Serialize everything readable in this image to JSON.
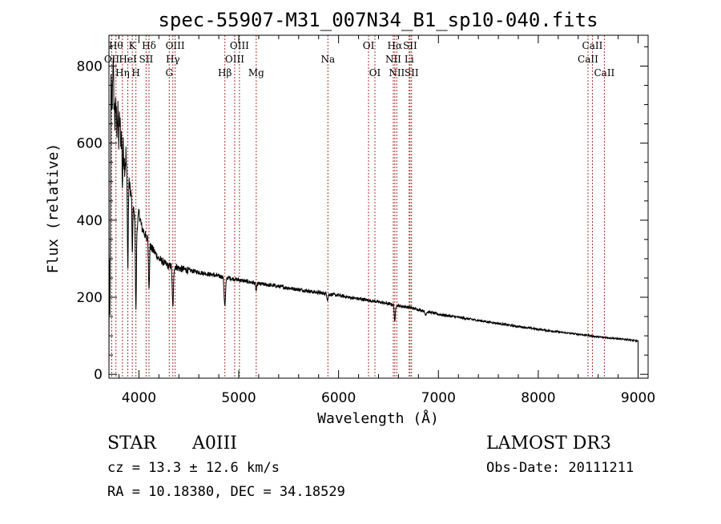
{
  "chart_data": {
    "type": "line",
    "title": "spec-55907-M31_007N34_B1_sp10-040.fits",
    "xlabel": "Wavelength (Å)",
    "ylabel": "Flux (relative)",
    "xlim": [
      3700,
      9100
    ],
    "ylim": [
      -10,
      880
    ],
    "xticks": [
      4000,
      5000,
      6000,
      7000,
      8000,
      9000
    ],
    "yticks": [
      0,
      200,
      400,
      600,
      800
    ],
    "grid": false,
    "line_color": "#000000",
    "marker_color": "#b03030",
    "spectrum_anchors": [
      [
        3700,
        0
      ],
      [
        3703,
        350
      ],
      [
        3710,
        150
      ],
      [
        3720,
        760
      ],
      [
        3730,
        680
      ],
      [
        3740,
        820
      ],
      [
        3750,
        720
      ],
      [
        3760,
        650
      ],
      [
        3770,
        700
      ],
      [
        3780,
        640
      ],
      [
        3790,
        690
      ],
      [
        3800,
        720
      ],
      [
        3810,
        650
      ],
      [
        3820,
        610
      ],
      [
        3835,
        640
      ],
      [
        3850,
        560
      ],
      [
        3860,
        540
      ],
      [
        3870,
        570
      ],
      [
        3880,
        510
      ],
      [
        3890,
        480
      ],
      [
        3900,
        500
      ],
      [
        3920,
        470
      ],
      [
        3935,
        450
      ],
      [
        3950,
        420
      ],
      [
        3970,
        400
      ],
      [
        3985,
        390
      ],
      [
        4000,
        420
      ],
      [
        4030,
        380
      ],
      [
        4050,
        370
      ],
      [
        4080,
        350
      ],
      [
        4101,
        380
      ],
      [
        4120,
        330
      ],
      [
        4150,
        320
      ],
      [
        4200,
        300
      ],
      [
        4250,
        290
      ],
      [
        4300,
        280
      ],
      [
        4340,
        285
      ],
      [
        4400,
        275
      ],
      [
        4500,
        270
      ],
      [
        4600,
        265
      ],
      [
        4700,
        260
      ],
      [
        4800,
        255
      ],
      [
        4900,
        250
      ],
      [
        5000,
        245
      ],
      [
        5100,
        240
      ],
      [
        5200,
        235
      ],
      [
        5300,
        232
      ],
      [
        5400,
        228
      ],
      [
        5500,
        224
      ],
      [
        5600,
        220
      ],
      [
        5700,
        216
      ],
      [
        5800,
        212
      ],
      [
        5900,
        208
      ],
      [
        6000,
        205
      ],
      [
        6100,
        200
      ],
      [
        6200,
        196
      ],
      [
        6300,
        192
      ],
      [
        6400,
        188
      ],
      [
        6500,
        183
      ],
      [
        6600,
        178
      ],
      [
        6700,
        174
      ],
      [
        6800,
        168
      ],
      [
        6900,
        162
      ],
      [
        7000,
        156
      ],
      [
        7200,
        148
      ],
      [
        7400,
        140
      ],
      [
        7600,
        132
      ],
      [
        7800,
        124
      ],
      [
        8000,
        117
      ],
      [
        8200,
        110
      ],
      [
        8400,
        104
      ],
      [
        8500,
        101
      ],
      [
        8600,
        97
      ],
      [
        8700,
        95
      ],
      [
        8800,
        92
      ],
      [
        8900,
        90
      ],
      [
        9000,
        86
      ]
    ],
    "absorption_features": [
      [
        3798,
        110,
        6
      ],
      [
        3835,
        150,
        5
      ],
      [
        3889,
        210,
        6
      ],
      [
        3934,
        150,
        5
      ],
      [
        3970,
        230,
        7
      ],
      [
        4101,
        150,
        8
      ],
      [
        4340,
        110,
        9
      ],
      [
        4861,
        75,
        10
      ],
      [
        5175,
        20,
        8
      ],
      [
        5890,
        15,
        8
      ],
      [
        6563,
        45,
        7
      ],
      [
        6870,
        10,
        10
      ]
    ],
    "spectral_lines": [
      {
        "x": 3728,
        "label": "OII",
        "row": 0
      },
      {
        "x": 3770,
        "label": "Hθ",
        "row": -1
      },
      {
        "x": 3835,
        "label": "Hη",
        "row": 1
      },
      {
        "x": 3889,
        "label": "HeI",
        "row": 0
      },
      {
        "x": 3934,
        "label": "K",
        "row": -1
      },
      {
        "x": 3970,
        "label": "H",
        "row": 1
      },
      {
        "x": 4072,
        "label": "SII",
        "row": 0
      },
      {
        "x": 4101,
        "label": "Hδ",
        "row": -1
      },
      {
        "x": 4304,
        "label": "G",
        "row": 1
      },
      {
        "x": 4340,
        "label": "Hγ",
        "row": 0
      },
      {
        "x": 4363,
        "label": "OIII",
        "row": -1
      },
      {
        "x": 4861,
        "label": "Hβ",
        "row": 1
      },
      {
        "x": 4959,
        "label": "OIII",
        "row": 0
      },
      {
        "x": 5007,
        "label": "OIII",
        "row": -1
      },
      {
        "x": 5175,
        "label": "Mg",
        "row": 1
      },
      {
        "x": 5893,
        "label": "Na",
        "row": 0
      },
      {
        "x": 6300,
        "label": "OI",
        "row": -1
      },
      {
        "x": 6364,
        "label": "OI",
        "row": 1
      },
      {
        "x": 6548,
        "label": "NII",
        "row": 0
      },
      {
        "x": 6563,
        "label": "Hα",
        "row": -1
      },
      {
        "x": 6583,
        "label": "NII",
        "row": 1
      },
      {
        "x": 6707,
        "label": "Li",
        "row": 0
      },
      {
        "x": 6716,
        "label": "SII",
        "row": -1
      },
      {
        "x": 6731,
        "label": "SII",
        "row": 1
      },
      {
        "x": 8498,
        "label": "CaII",
        "row": 0
      },
      {
        "x": 8542,
        "label": "CaII",
        "row": -1
      },
      {
        "x": 8662,
        "label": "CaII",
        "row": 1
      }
    ]
  },
  "info": {
    "object_class": "STAR",
    "subclass": "A0III",
    "survey": "LAMOST DR3",
    "redshift": "cz = 13.3 ± 12.6 km/s",
    "obs_date": "Obs-Date: 20111211",
    "coords": "RA =  10.18380, DEC =  34.18529"
  }
}
